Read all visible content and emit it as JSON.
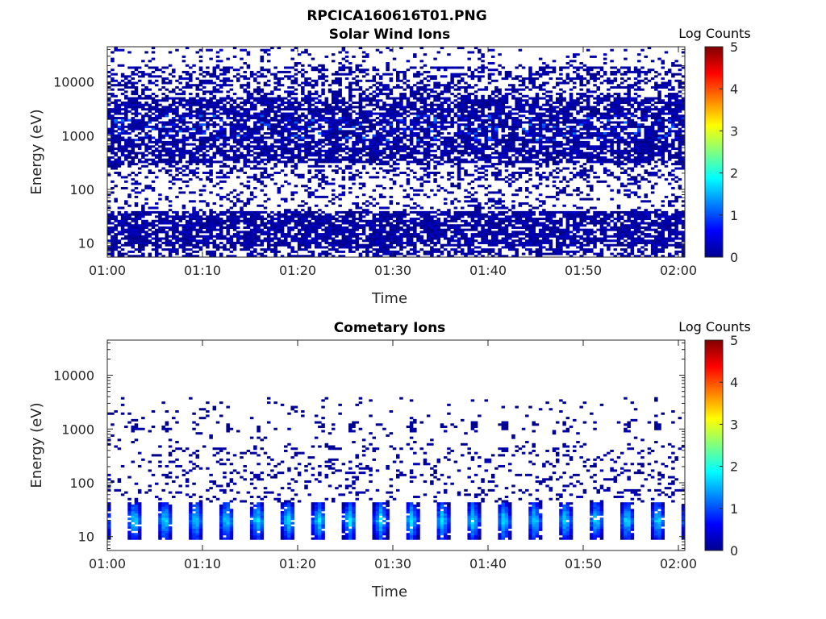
{
  "figure_title": "RPCICA160616T01.PNG",
  "colormap": "jet",
  "chart_data": [
    {
      "type": "heatmap",
      "title": "Solar Wind Ions",
      "xlabel": "Time",
      "ylabel": "Energy (eV)",
      "xticks": [
        "01:00",
        "01:10",
        "01:20",
        "01:30",
        "01:40",
        "01:50",
        "02:00"
      ],
      "yticks": [
        "10",
        "100",
        "1000",
        "10000"
      ],
      "yscale": "log",
      "ylim": [
        5.5,
        45000
      ],
      "xlim": [
        "01:00",
        "02:00"
      ],
      "colorbar": {
        "label": "Log Counts",
        "range": [
          0,
          5
        ],
        "ticks": [
          "0",
          "1",
          "2",
          "3",
          "4",
          "5"
        ]
      },
      "pattern": "sparse ~0-1.3 counts from about 6 eV to 35 keV, densest between 300 eV and 5 keV, band near 10-40 eV, enhancements near 1-2 keV"
    },
    {
      "type": "heatmap",
      "title": "Cometary Ions",
      "xlabel": "Time",
      "ylabel": "Energy (eV)",
      "xticks": [
        "01:00",
        "01:10",
        "01:20",
        "01:30",
        "01:40",
        "01:50",
        "02:00"
      ],
      "yticks": [
        "10",
        "100",
        "1000",
        "10000"
      ],
      "yscale": "log",
      "ylim": [
        5.5,
        45000
      ],
      "xlim": [
        "01:00",
        "02:00"
      ],
      "colorbar": {
        "label": "Log Counts",
        "range": [
          0,
          5
        ],
        "ticks": [
          "0",
          "1",
          "2",
          "3",
          "4",
          "5"
        ]
      },
      "pattern": "periodic bursts every ~3.2 min peaking ~1.8 log counts at 15-30 eV, sparse counts up to ~3 keV"
    }
  ]
}
